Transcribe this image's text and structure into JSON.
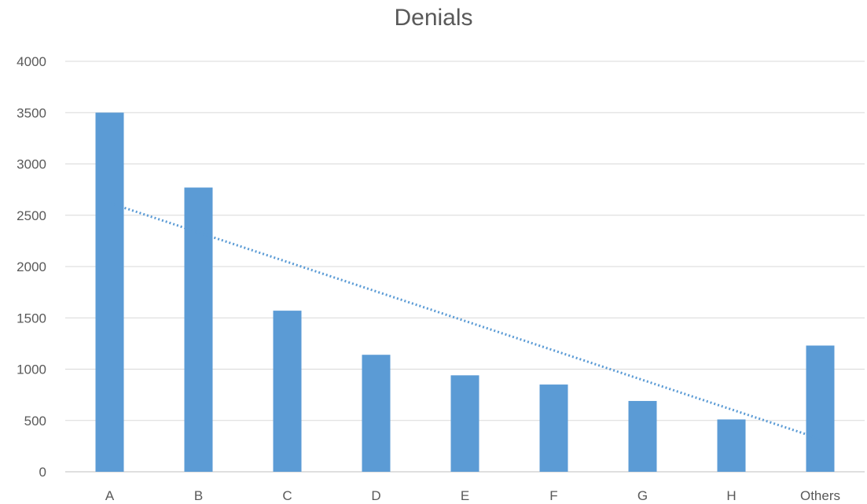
{
  "chart_data": {
    "type": "bar",
    "title": "Denials",
    "categories": [
      "A",
      "B",
      "C",
      "D",
      "E",
      "F",
      "G",
      "H",
      "Others"
    ],
    "values": [
      3500,
      2770,
      1570,
      1140,
      940,
      850,
      690,
      510,
      1230
    ],
    "ylim": [
      0,
      4000
    ],
    "yticks": [
      0,
      500,
      1000,
      1500,
      2000,
      2500,
      3000,
      3500,
      4000
    ],
    "grid": true,
    "bar_color": "#5B9BD5",
    "trendline": {
      "type": "linear",
      "style": "dotted",
      "color": "#5B9BD5",
      "start": {
        "category": "A",
        "value": 2620
      },
      "end": {
        "category": "Others",
        "value": 320
      }
    }
  }
}
